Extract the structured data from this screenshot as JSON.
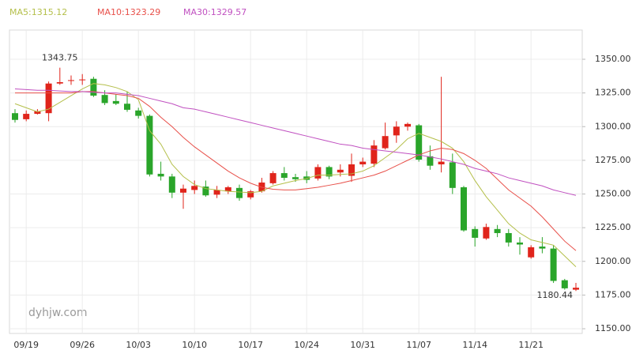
{
  "chart_data": {
    "type": "candlestick",
    "watermark": "dyhjw.com",
    "categories": [
      null,
      "09/19",
      null,
      null,
      null,
      null,
      "09/26",
      null,
      null,
      null,
      null,
      "10/03",
      null,
      null,
      null,
      null,
      "10/10",
      null,
      null,
      null,
      null,
      "10/17",
      null,
      null,
      null,
      null,
      "10/24",
      null,
      null,
      null,
      null,
      "10/31",
      null,
      null,
      null,
      null,
      "11/07",
      null,
      null,
      null,
      null,
      "11/14",
      null,
      null,
      null,
      null,
      "11/21",
      null,
      null,
      null,
      null
    ],
    "open": [
      1310,
      1305.5,
      1309.5,
      1310,
      1332,
      1334,
      1334.5,
      1335.5,
      1323.5,
      1319,
      1317,
      1312,
      1308,
      1265,
      1263,
      1251,
      1253,
      1255.5,
      1249.5,
      1252,
      1254.5,
      1247.5,
      1252,
      1258,
      1265.5,
      1262.5,
      1263,
      1261.5,
      1270,
      1266,
      1263.5,
      1272,
      1272.5,
      1284,
      1293.5,
      1300,
      1301,
      1278,
      1272,
      1273.5,
      1255,
      1224,
      1217,
      1224,
      1221,
      1214,
      1203,
      1211,
      1209.5,
      1186,
      1179
    ],
    "high": [
      1313,
      1312,
      1313,
      1333.5,
      1343.75,
      1338,
      1339,
      1337,
      1327,
      1324,
      1326,
      1314,
      1309,
      1274,
      1265,
      1257,
      1260,
      1260,
      1256,
      1256,
      1257,
      1253,
      1262,
      1267,
      1270,
      1265,
      1267,
      1272,
      1271,
      1272,
      1280,
      1277,
      1290,
      1303,
      1304,
      1303,
      1302,
      1286,
      1337,
      1280,
      1256,
      1226,
      1228,
      1227,
      1224,
      1218,
      1212,
      1218,
      1212,
      1187,
      1184
    ],
    "low": [
      1303,
      1304,
      1309,
      1304,
      1331,
      1331,
      1331,
      1322,
      1316,
      1316,
      1311,
      1306,
      1263,
      1260,
      1247,
      1239,
      1250,
      1248,
      1247,
      1250,
      1245,
      1246,
      1251,
      1257,
      1260,
      1259,
      1258,
      1260,
      1261,
      1263,
      1259,
      1270,
      1270,
      1283,
      1288,
      1297,
      1274,
      1268,
      1266,
      1250,
      1222,
      1211,
      1216,
      1218,
      1211,
      1205,
      1202,
      1206,
      1184,
      1179,
      1178
    ],
    "close": [
      1305,
      1309.5,
      1311.5,
      1332,
      1333,
      1334.5,
      1335,
      1323,
      1317.5,
      1317,
      1312.5,
      1308,
      1264.5,
      1263,
      1251,
      1254,
      1256,
      1249,
      1253,
      1255,
      1247,
      1252,
      1258.5,
      1265.5,
      1262,
      1261,
      1260.5,
      1270,
      1263,
      1268,
      1272,
      1274,
      1286,
      1293,
      1300,
      1302,
      1275.5,
      1271,
      1274,
      1254.5,
      1223,
      1217.5,
      1225.5,
      1221,
      1214,
      1212.5,
      1210.5,
      1209.5,
      1185.5,
      1180,
      1180.44
    ],
    "up_color": "#e0241b",
    "down_color": "#2aa52a",
    "ma": [
      {
        "name": "MA5:1315.12",
        "color": "#b4bf4a",
        "values": [
          1317,
          1314,
          1311,
          1313,
          1318,
          1323,
          1328,
          1332,
          1331,
          1329,
          1326,
          1320,
          1297,
          1287,
          1272,
          1263,
          1257,
          1254,
          1253,
          1252,
          1251.5,
          1251,
          1252,
          1256,
          1258,
          1260,
          1261.5,
          1264,
          1264,
          1264.5,
          1265,
          1267,
          1271,
          1277,
          1283,
          1291,
          1295,
          1292,
          1289,
          1284,
          1274,
          1260,
          1248,
          1238,
          1228,
          1221,
          1216,
          1214,
          1212,
          1204,
          1196
        ]
      },
      {
        "name": "MA10:1323.29",
        "color": "#e8504a",
        "values": [
          1325,
          1325,
          1325,
          1325,
          1325,
          1325,
          1326,
          1326,
          1325,
          1324,
          1323,
          1321,
          1315,
          1307,
          1300,
          1292,
          1285,
          1279,
          1273,
          1267,
          1262,
          1258,
          1255,
          1253.5,
          1253,
          1253,
          1254,
          1255,
          1256.5,
          1258,
          1260,
          1262,
          1264,
          1267,
          1271,
          1275,
          1279,
          1282,
          1284,
          1283,
          1280,
          1275,
          1269,
          1261,
          1253,
          1247,
          1241,
          1233,
          1224,
          1215,
          1208
        ]
      },
      {
        "name": "MA30:1329.57",
        "color": "#c050c0",
        "values": [
          1328,
          1327.5,
          1327,
          1327,
          1326.5,
          1326,
          1326,
          1325.5,
          1325,
          1325,
          1324,
          1323,
          1321,
          1319,
          1317,
          1314,
          1313,
          1311,
          1309,
          1307,
          1305,
          1303,
          1301,
          1299,
          1297,
          1295,
          1293,
          1291,
          1289,
          1287,
          1286,
          1284,
          1283,
          1282,
          1281,
          1280,
          1279,
          1277.5,
          1276,
          1274,
          1272,
          1269,
          1267,
          1265,
          1262,
          1260,
          1258,
          1256,
          1253,
          1251,
          1249
        ]
      }
    ],
    "annotations": [
      {
        "label": "1343.75",
        "value": 1343.75,
        "of": "high"
      },
      {
        "label": "1180.44",
        "value": 1180.44,
        "of": "close"
      }
    ],
    "ylim": [
      1146.5,
      1371.7
    ],
    "yticks": [
      {
        "value": 1150,
        "label": "1150.00"
      },
      {
        "value": 1175,
        "label": "1175.00"
      },
      {
        "value": 1200,
        "label": "1200.00"
      },
      {
        "value": 1225,
        "label": "1225.00"
      },
      {
        "value": 1250,
        "label": "1250.00"
      },
      {
        "value": 1275,
        "label": "1275.00"
      },
      {
        "value": 1300,
        "label": "1300.00"
      },
      {
        "value": 1325,
        "label": "1325.00"
      },
      {
        "value": 1350,
        "label": "1350.00"
      }
    ],
    "grid": true
  }
}
